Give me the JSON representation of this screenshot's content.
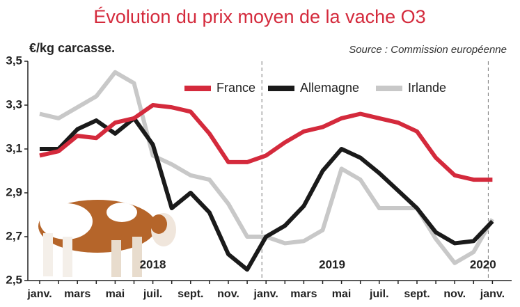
{
  "chart_data": {
    "type": "line",
    "title": "Évolution du prix moyen de la vache O3",
    "y_label": "€/kg carcasse.",
    "source": "Source : Commission européenne",
    "categories": [
      "janv.",
      null,
      "mars",
      null,
      "mai",
      null,
      "juil.",
      null,
      "sept.",
      null,
      "nov.",
      null,
      "janv.",
      null,
      "mars",
      null,
      "mai",
      null,
      "juil.",
      null,
      "sept.",
      null,
      "nov.",
      null,
      "janv."
    ],
    "annotations": [
      "2018",
      "2019",
      "2020"
    ],
    "series": [
      {
        "name": "France",
        "color": "#d42a3c",
        "values": [
          3.07,
          3.09,
          3.16,
          3.15,
          3.22,
          3.24,
          3.3,
          3.29,
          3.27,
          3.17,
          3.04,
          3.04,
          3.07,
          3.13,
          3.18,
          3.2,
          3.24,
          3.26,
          3.24,
          3.22,
          3.18,
          3.06,
          2.98,
          2.96,
          2.96
        ]
      },
      {
        "name": "Allemagne",
        "color": "#1a1a1a",
        "values": [
          3.1,
          3.1,
          3.19,
          3.23,
          3.17,
          3.24,
          3.12,
          2.83,
          2.9,
          2.81,
          2.62,
          2.55,
          2.7,
          2.75,
          2.84,
          3.0,
          3.1,
          3.06,
          2.99,
          2.91,
          2.83,
          2.72,
          2.67,
          2.68,
          2.77
        ]
      },
      {
        "name": "Irlande",
        "color": "#c8c8c8",
        "values": [
          3.26,
          3.24,
          3.29,
          3.34,
          3.45,
          3.4,
          3.07,
          3.03,
          2.98,
          2.96,
          2.85,
          2.7,
          2.7,
          2.67,
          2.68,
          2.73,
          3.01,
          2.96,
          2.83,
          2.83,
          2.83,
          2.69,
          2.58,
          2.63,
          2.78
        ]
      }
    ],
    "ylim": [
      2.5,
      3.5
    ],
    "yticks": [
      {
        "value": 2.5,
        "label": "2,5"
      },
      {
        "value": 2.7,
        "label": "2,7"
      },
      {
        "value": 2.9,
        "label": "2,9"
      },
      {
        "value": 3.1,
        "label": "3,1"
      },
      {
        "value": 3.3,
        "label": "3,3"
      },
      {
        "value": 3.5,
        "label": "3,5"
      }
    ]
  }
}
